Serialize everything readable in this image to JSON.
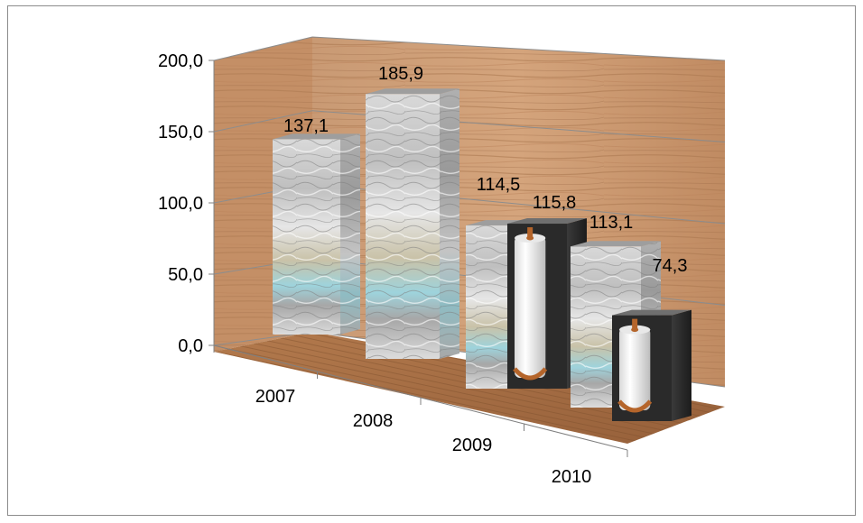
{
  "chart_data": {
    "type": "bar",
    "style": "3d-column",
    "categories": [
      "2007",
      "2008",
      "2009",
      "2010"
    ],
    "series": [
      {
        "values": [
          137.1,
          185.9,
          114.5,
          113.1
        ],
        "fill": "crumpled paper texture"
      },
      {
        "values": [
          null,
          null,
          115.8,
          74.3
        ],
        "fill": "paper rolls texture"
      }
    ],
    "y_tick_labels": [
      "0,0",
      "50,0",
      "100,0",
      "150,0",
      "200,0"
    ],
    "data_labels": [
      "137,1",
      "185,9",
      "114,5",
      "115,8",
      "113,1",
      "74,3"
    ],
    "ylim": [
      0,
      200
    ],
    "y_ticks": [
      0,
      50,
      100,
      150,
      200
    ],
    "grid": true,
    "legend": "none",
    "title": "",
    "xlabel": "",
    "ylabel": "",
    "colors": {
      "wall_wood": "#c8946a",
      "floor_wood": "#a86e43",
      "paper_light": "#e8e8e8",
      "paper_dark": "#8a8a8a",
      "roll_bg": "#2a2a2a",
      "roll_paper": "#f4f4f4",
      "roll_core": "#b5652b",
      "axis": "#808080"
    }
  }
}
